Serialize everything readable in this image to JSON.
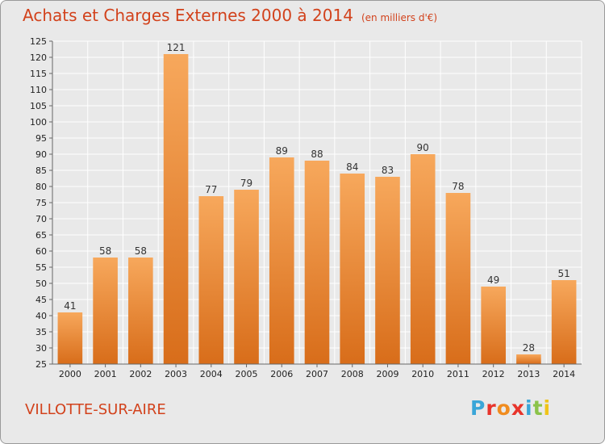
{
  "header": {
    "title": "Achats et Charges Externes 2000 à 2014",
    "unit": "(en milliers d'€)"
  },
  "footer": {
    "commune": "VILLOTTE-SUR-AIRE",
    "logo": {
      "letters": [
        "P",
        "r",
        "o",
        "x",
        "i",
        "t",
        "i"
      ],
      "colors": [
        "#3aa6d8",
        "#e8342b",
        "#f08c1f",
        "#e8342b",
        "#3aa6d8",
        "#8bc34a",
        "#f0c419"
      ]
    }
  },
  "colors": {
    "title": "#d2421c",
    "bar_top": "#f7a85c",
    "bar_bottom": "#d86d1a",
    "grid": "#ffffff",
    "background": "#e9e9e9"
  },
  "chart_data": {
    "type": "bar",
    "title": "Achats et Charges Externes 2000 à 2014",
    "categories": [
      "2000",
      "2001",
      "2002",
      "2003",
      "2004",
      "2005",
      "2006",
      "2007",
      "2008",
      "2009",
      "2010",
      "2011",
      "2012",
      "2013",
      "2014"
    ],
    "values": [
      41,
      58,
      58,
      121,
      77,
      79,
      89,
      88,
      84,
      83,
      90,
      78,
      49,
      28,
      51
    ],
    "ylim": [
      25,
      125
    ],
    "yticks": [
      25,
      30,
      35,
      40,
      45,
      50,
      55,
      60,
      65,
      70,
      75,
      80,
      85,
      90,
      95,
      100,
      105,
      110,
      115,
      120,
      125
    ],
    "grid": true,
    "data_labels": true,
    "xlabel": "",
    "ylabel": ""
  }
}
